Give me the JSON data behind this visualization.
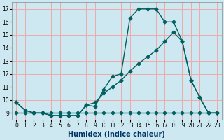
{
  "xlabel": "Humidex (Indice chaleur)",
  "bg_color": "#cde8f0",
  "grid_color": "#f0aaaa",
  "line_color": "#006060",
  "xlim": [
    -0.5,
    23.5
  ],
  "ylim": [
    8.5,
    17.5
  ],
  "yticks": [
    9,
    10,
    11,
    12,
    13,
    14,
    15,
    16,
    17
  ],
  "xticks": [
    0,
    1,
    2,
    3,
    4,
    5,
    6,
    7,
    8,
    9,
    10,
    11,
    12,
    13,
    14,
    15,
    16,
    17,
    18,
    19,
    20,
    21,
    22,
    23
  ],
  "series1_x": [
    0,
    1,
    2,
    3,
    4,
    5,
    6,
    7,
    8,
    9,
    10,
    11,
    12,
    13,
    14,
    15,
    16,
    17,
    18,
    19,
    20,
    21,
    22,
    23
  ],
  "series1_y": [
    9.8,
    9.2,
    9.0,
    9.0,
    8.8,
    8.8,
    8.8,
    8.8,
    9.6,
    9.5,
    10.8,
    11.8,
    12.0,
    16.3,
    17.0,
    17.0,
    17.0,
    16.0,
    16.0,
    14.5,
    11.5,
    10.2,
    9.0,
    9.0
  ],
  "series2_x": [
    0,
    1,
    2,
    3,
    4,
    5,
    6,
    7,
    8,
    9,
    10,
    11,
    12,
    13,
    14,
    15,
    16,
    17,
    18,
    19,
    20,
    21,
    22,
    23
  ],
  "series2_y": [
    9.0,
    9.0,
    9.0,
    9.0,
    9.0,
    9.0,
    9.0,
    9.0,
    9.0,
    9.0,
    9.0,
    9.0,
    9.0,
    9.0,
    9.0,
    9.0,
    9.0,
    9.0,
    9.0,
    9.0,
    9.0,
    9.0,
    9.0,
    9.0
  ],
  "series3_x": [
    0,
    1,
    2,
    3,
    4,
    5,
    6,
    7,
    8,
    9,
    10,
    11,
    12,
    13,
    14,
    15,
    16,
    17,
    18,
    19,
    20,
    21,
    22,
    23
  ],
  "series3_y": [
    9.8,
    9.2,
    9.0,
    9.0,
    8.8,
    8.8,
    8.8,
    8.8,
    9.6,
    9.8,
    10.5,
    11.0,
    11.5,
    12.2,
    12.8,
    13.3,
    13.8,
    14.5,
    15.2,
    14.5,
    11.5,
    10.2,
    9.0,
    9.0
  ],
  "xlabel_color": "#003366",
  "xlabel_fontsize": 7,
  "tick_fontsize": 5.5,
  "linewidth": 1.0,
  "markersize": 2.5
}
